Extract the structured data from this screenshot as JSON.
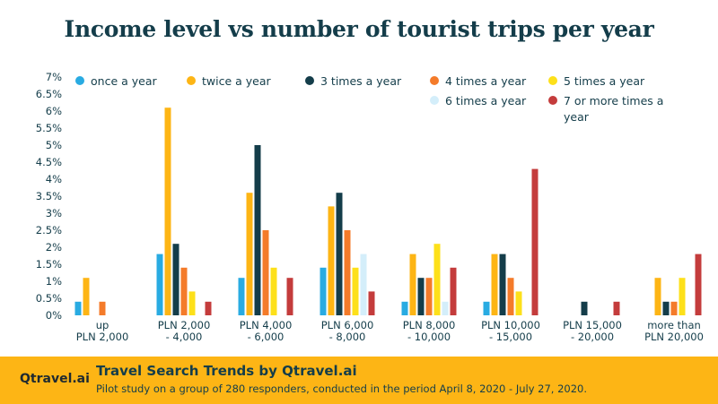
{
  "chart_data": {
    "type": "bar",
    "title": "Income level vs number of tourist trips per year",
    "xlabel": "",
    "ylabel": "",
    "ylim": [
      0,
      7
    ],
    "yticks": [
      "0%",
      "0.5%",
      "1%",
      "1.5%",
      "2%",
      "2.5%",
      "3%",
      "3.5%",
      "4%",
      "4.5%",
      "5%",
      "5.5%",
      "6%",
      "6.5%",
      "7%"
    ],
    "grid": false,
    "legend_position": "top-right",
    "categories": [
      [
        "up",
        "PLN 2,000"
      ],
      [
        "PLN 2,000",
        "- 4,000"
      ],
      [
        "PLN 4,000",
        "- 6,000"
      ],
      [
        "PLN 6,000",
        "- 8,000"
      ],
      [
        "PLN 8,000",
        "- 10,000"
      ],
      [
        "PLN 10,000",
        "- 15,000"
      ],
      [
        "PLN 15,000",
        "- 20,000"
      ],
      [
        "more than",
        "PLN 20,000"
      ]
    ],
    "series": [
      {
        "name": "once a year",
        "color": "#29abe2",
        "values": [
          0.4,
          1.8,
          1.1,
          1.4,
          0.4,
          0.4,
          0,
          0
        ]
      },
      {
        "name": "twice a year",
        "color": "#fdb515",
        "values": [
          1.1,
          6.1,
          3.6,
          3.2,
          1.8,
          1.8,
          0,
          1.1
        ]
      },
      {
        "name": "3 times a year",
        "color": "#143d4a",
        "values": [
          0,
          2.1,
          5.0,
          3.6,
          1.1,
          1.8,
          0.4,
          0.4
        ]
      },
      {
        "name": "4 times a year",
        "color": "#f47b2a",
        "values": [
          0.4,
          1.4,
          2.5,
          2.5,
          1.1,
          1.1,
          0,
          0.4
        ]
      },
      {
        "name": "5 times a year",
        "color": "#fde01a",
        "values": [
          0,
          0.7,
          1.4,
          1.4,
          2.1,
          0.7,
          0,
          1.1
        ]
      },
      {
        "name": "6 times a year",
        "color": "#d4eefa",
        "values": [
          0,
          0,
          0,
          1.8,
          0.4,
          0,
          0,
          0
        ]
      },
      {
        "name": "7 or more times a year",
        "legend_lines": [
          "7 or more times a",
          "year"
        ],
        "color": "#c43c3c",
        "values": [
          0,
          0.4,
          1.1,
          0.7,
          1.4,
          4.3,
          0.4,
          1.8
        ]
      }
    ]
  },
  "footer": {
    "brand": "Qtravel.ai",
    "title": "Travel Search Trends by Qtravel.ai",
    "subtitle": "Pilot study on a group of 280 responders, conducted in the period April 8, 2020 - July 27, 2020."
  }
}
